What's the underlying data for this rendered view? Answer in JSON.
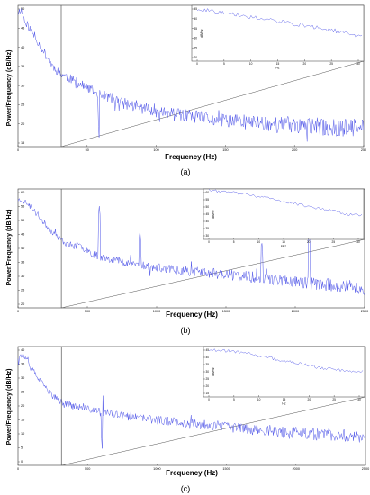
{
  "figure": {
    "colors": {
      "trace": "#4f55e8",
      "axis": "#333333",
      "marker": "#555555",
      "text": "#000000"
    }
  },
  "chart_data": [
    {
      "type": "line",
      "panel_label": "(a)",
      "xlabel": "Frequency (Hz)",
      "ylabel": "Power/Frequency (dB/Hz)",
      "x_tick_labels": [
        "0",
        "50",
        "100",
        "150",
        "200",
        "250"
      ],
      "y_tick_labels": [
        "50",
        "45",
        "40",
        "35",
        "30",
        "25",
        "20",
        "15"
      ],
      "xlim": [
        0,
        256
      ],
      "ylim": [
        12,
        50
      ],
      "marker_line_x": 32,
      "series": [
        {
          "x": [
            0,
            2,
            5,
            10,
            15,
            20,
            25,
            30,
            35,
            40,
            45,
            50,
            55,
            60,
            65,
            70,
            75,
            80,
            90,
            100,
            110,
            120,
            130,
            140,
            150,
            160,
            170,
            180,
            190,
            200,
            210,
            220,
            230,
            240,
            250,
            256
          ],
          "y": [
            48,
            49,
            46,
            43,
            40,
            37,
            34,
            32,
            31,
            30,
            29,
            28,
            27,
            26,
            25.5,
            25,
            24,
            23.5,
            22.5,
            22,
            21,
            20.5,
            20,
            19.5,
            19,
            19,
            18.5,
            18.5,
            18,
            18,
            17.5,
            17.5,
            17,
            17,
            17,
            17
          ]
        }
      ],
      "dips": [
        {
          "x": 60,
          "y": 14
        }
      ],
      "peaks": [],
      "inset": {
        "xlabel": "Hz",
        "ylabel": "dB/Hz",
        "x_tick_labels": [
          "0",
          "5",
          "10",
          "15",
          "20",
          "25",
          "30"
        ],
        "y_tick_labels": [
          "45",
          "40",
          "35",
          "30",
          "25",
          "20"
        ],
        "xlim": [
          -4,
          31
        ],
        "ylim": [
          18,
          47
        ],
        "series": [
          {
            "x": [
              -4,
              0,
              5,
              10,
              15,
              20,
              25,
              28,
              31
            ],
            "y": [
              45,
              44,
              42,
              40,
              38,
              36,
              34,
              32,
              31
            ]
          }
        ]
      }
    },
    {
      "type": "line",
      "panel_label": "(b)",
      "xlabel": "Frequency (Hz)",
      "ylabel": "Power/Frequency (dB/Hz)",
      "x_tick_labels": [
        "0",
        "500",
        "1000",
        "1500",
        "2000",
        "2500"
      ],
      "y_tick_labels": [
        "60",
        "55",
        "50",
        "45",
        "40",
        "35",
        "30",
        "25",
        "20"
      ],
      "xlim": [
        0,
        2560
      ],
      "ylim": [
        18,
        62
      ],
      "marker_line_x": 320,
      "series": [
        {
          "x": [
            0,
            30,
            60,
            100,
            150,
            200,
            250,
            300,
            350,
            400,
            450,
            500,
            550,
            600,
            700,
            800,
            900,
            1000,
            1100,
            1200,
            1300,
            1400,
            1500,
            1600,
            1700,
            1800,
            1900,
            2000,
            2100,
            2200,
            2300,
            2400,
            2500,
            2560
          ],
          "y": [
            58,
            58,
            57,
            55,
            52,
            49,
            46,
            44,
            42,
            41,
            41,
            40,
            38,
            37,
            36,
            35,
            34,
            33,
            32.5,
            32,
            31.5,
            31,
            30.5,
            30,
            29.5,
            29,
            28.5,
            28,
            27.5,
            27,
            26.5,
            26,
            25.5,
            25
          ]
        }
      ],
      "dips": [],
      "peaks": [
        {
          "x": 600,
          "y": 56
        },
        {
          "x": 900,
          "y": 47
        },
        {
          "x": 1800,
          "y": 43
        },
        {
          "x": 2150,
          "y": 46
        }
      ],
      "inset": {
        "xlabel": "kHz",
        "ylabel": "dB/Hz",
        "x_tick_labels": [
          "0",
          "5",
          "10",
          "15",
          "20",
          "25",
          "30"
        ],
        "y_tick_labels": [
          "60",
          "55",
          "50",
          "45",
          "40",
          "35",
          "30"
        ],
        "xlim": [
          -4,
          31
        ],
        "ylim": [
          26,
          62
        ],
        "series": [
          {
            "x": [
              -4,
              0,
              5,
              10,
              15,
              20,
              25,
              28,
              31
            ],
            "y": [
              61,
              60,
              58,
              55,
              52,
              49,
              46,
              44,
              43
            ]
          }
        ]
      }
    },
    {
      "type": "line",
      "panel_label": "(c)",
      "xlabel": "Frequency (Hz)",
      "ylabel": "Power/Frequency (dB/Hz)",
      "x_tick_labels": [
        "0",
        "500",
        "1000",
        "1500",
        "2000",
        "2500"
      ],
      "y_tick_labels": [
        "40",
        "35",
        "30",
        "25",
        "20",
        "15",
        "10",
        "5",
        "0"
      ],
      "xlim": [
        0,
        2560
      ],
      "ylim": [
        -2,
        42
      ],
      "marker_line_x": 320,
      "series": [
        {
          "x": [
            0,
            30,
            60,
            100,
            150,
            200,
            250,
            300,
            350,
            400,
            500,
            600,
            700,
            800,
            900,
            1000,
            1100,
            1200,
            1300,
            1400,
            1500,
            1600,
            1700,
            1800,
            1900,
            2000,
            2100,
            2200,
            2300,
            2400,
            2500,
            2560
          ],
          "y": [
            38,
            39,
            37,
            34,
            30,
            27,
            24,
            22,
            21,
            20,
            19,
            18,
            17,
            16,
            15.5,
            15,
            14.5,
            14,
            13.5,
            13,
            12.5,
            12,
            11.5,
            11,
            10.5,
            10,
            10,
            9.5,
            9.5,
            9,
            9,
            9
          ]
        }
      ],
      "dips": [
        {
          "x": 620,
          "y": 4
        }
      ],
      "peaks": [
        {
          "x": 620,
          "y": 27
        }
      ],
      "inset": {
        "xlabel": "Hz",
        "ylabel": "dB/Hz",
        "x_tick_labels": [
          "0",
          "5",
          "10",
          "15",
          "20",
          "25",
          "30"
        ],
        "y_tick_labels": [
          "45",
          "40",
          "35",
          "30",
          "25",
          "20",
          "15"
        ],
        "xlim": [
          -4,
          31
        ],
        "ylim": [
          12,
          47
        ],
        "series": [
          {
            "x": [
              -4,
              0,
              5,
              10,
              15,
              20,
              25,
              28,
              31
            ],
            "y": [
              45,
              44,
              42,
              39,
              36,
              33,
              31,
              30,
              30
            ]
          }
        ]
      }
    }
  ]
}
